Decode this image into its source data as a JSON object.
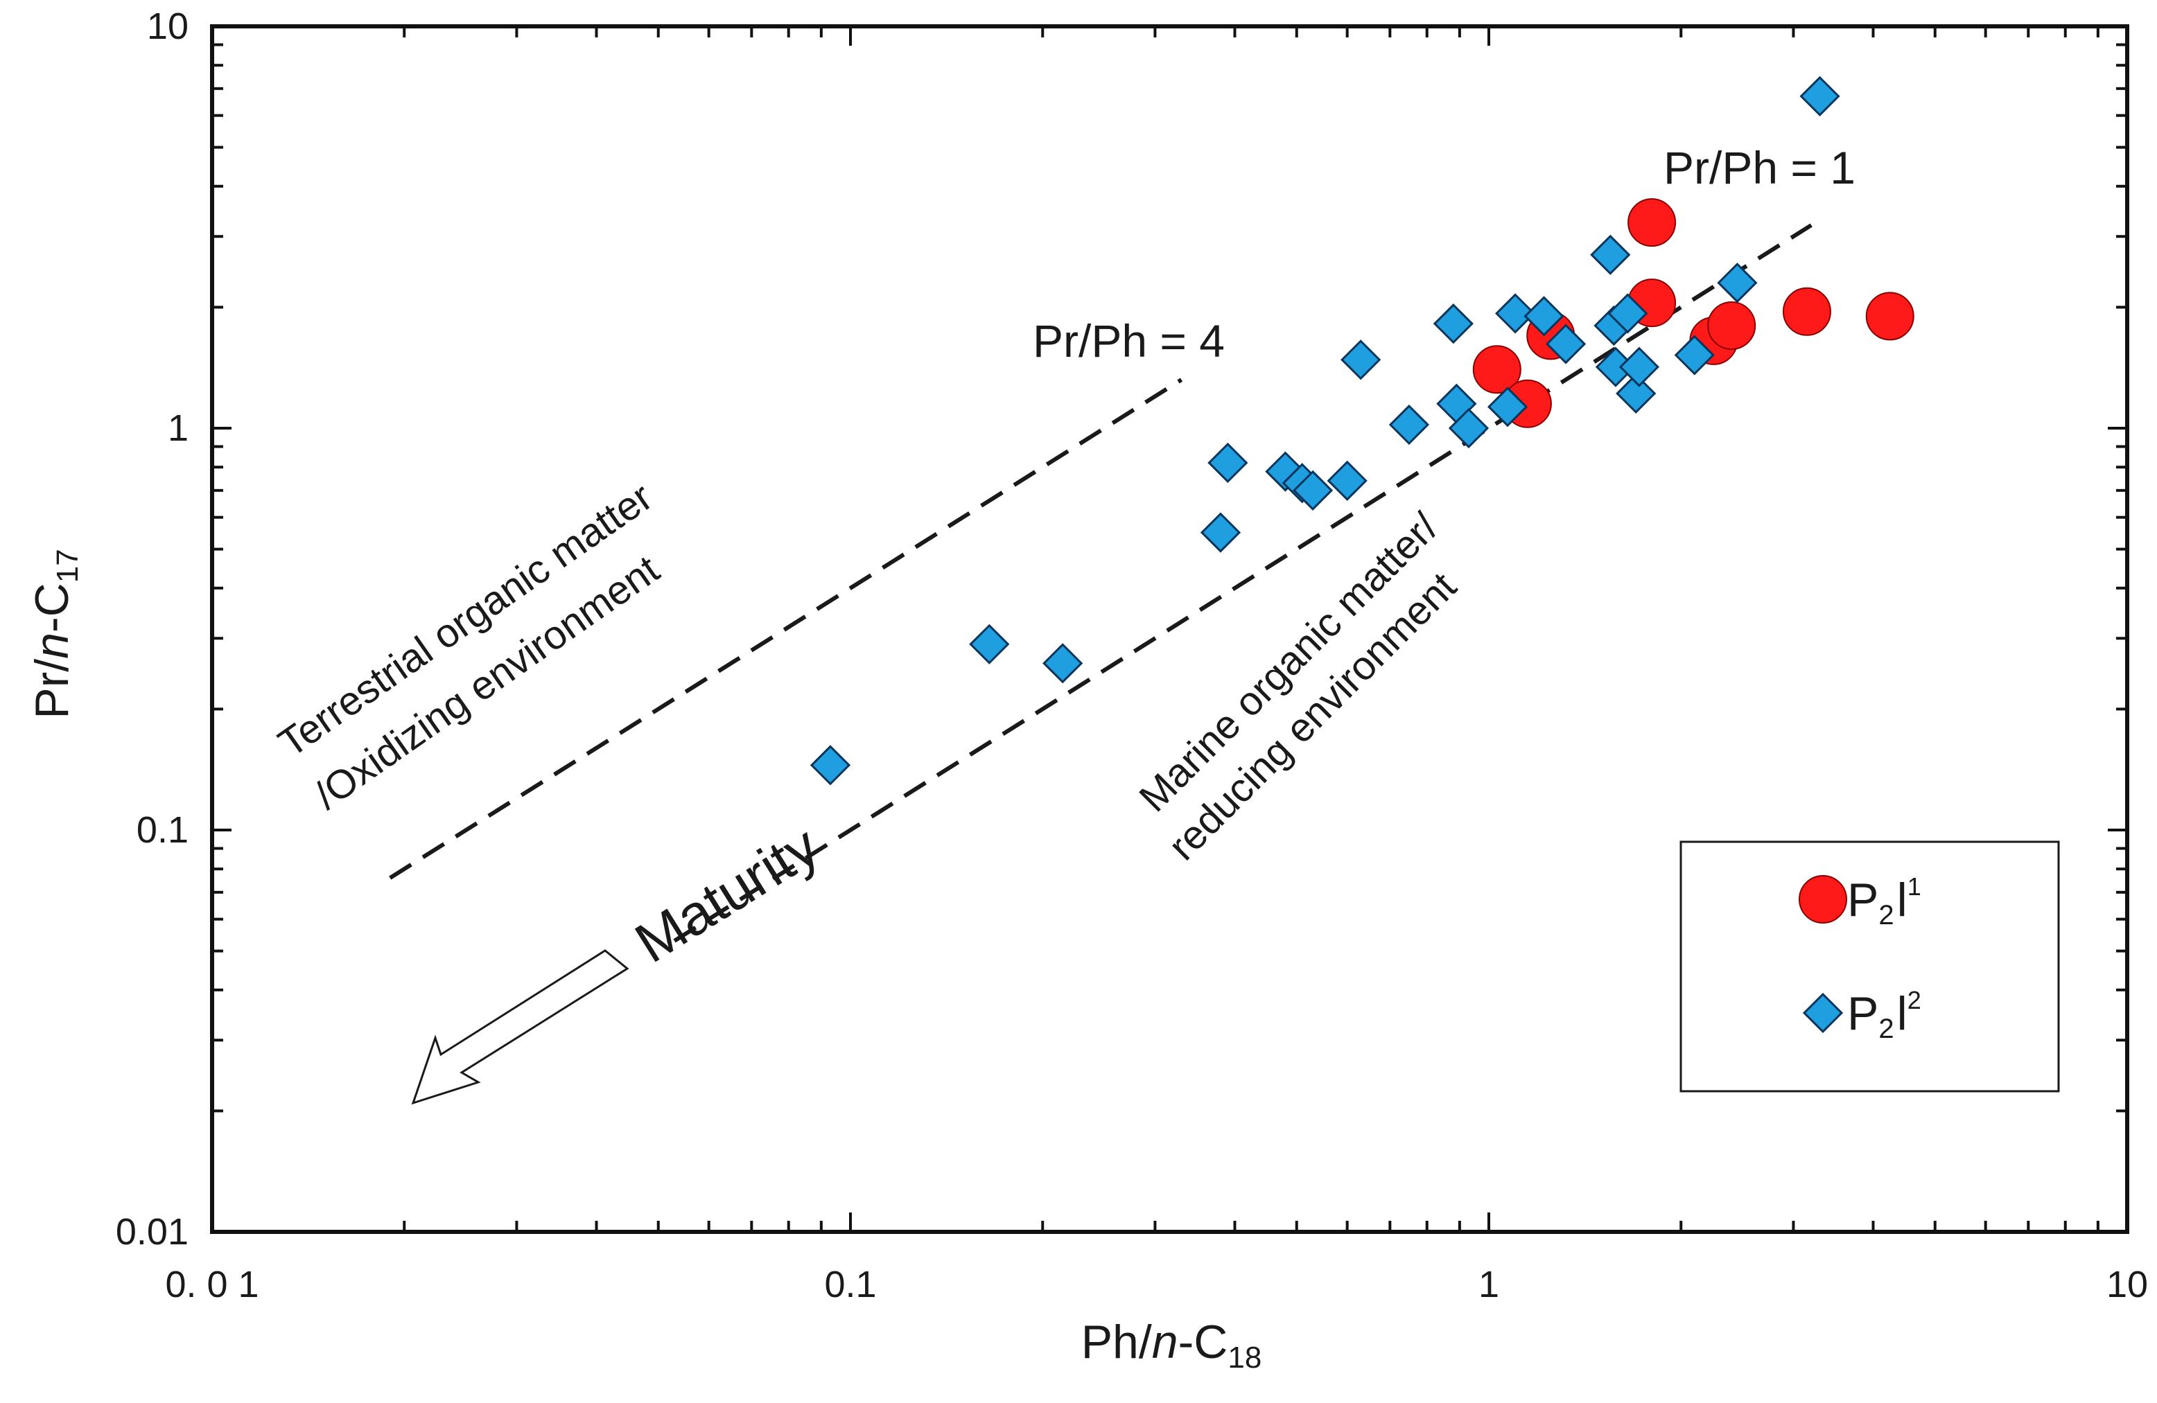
{
  "chart_data": {
    "type": "scatter",
    "xscale": "log",
    "yscale": "log",
    "xlim": [
      0.01,
      10
    ],
    "ylim": [
      0.01,
      10
    ],
    "xlabel": {
      "pre": "Ph/",
      "italic": "n",
      "post": "-C",
      "sub": "18"
    },
    "ylabel": {
      "pre": "Pr/",
      "italic": "n",
      "post": "-C",
      "sub": "17"
    },
    "xticks": [
      {
        "value": 0.01,
        "label": "0. 0 1"
      },
      {
        "value": 0.1,
        "label": "0.1"
      },
      {
        "value": 1,
        "label": "1"
      },
      {
        "value": 10,
        "label": "10"
      }
    ],
    "yticks": [
      {
        "value": 0.01,
        "label": "0.01"
      },
      {
        "value": 0.1,
        "label": "0.1"
      },
      {
        "value": 1,
        "label": "1"
      },
      {
        "value": 10,
        "label": "10"
      }
    ],
    "series": [
      {
        "name": "P2l1",
        "label": {
          "base": "P",
          "sub": "2",
          "letter": "l",
          "sup": "1"
        },
        "marker": "circle",
        "color": "#ff1a1a",
        "stroke": "#8a0000",
        "points": [
          {
            "x": 1.03,
            "y": 1.4
          },
          {
            "x": 1.15,
            "y": 1.15
          },
          {
            "x": 1.25,
            "y": 1.7
          },
          {
            "x": 1.8,
            "y": 3.25
          },
          {
            "x": 1.8,
            "y": 2.05
          },
          {
            "x": 2.25,
            "y": 1.65
          },
          {
            "x": 2.4,
            "y": 1.8
          },
          {
            "x": 3.15,
            "y": 1.95
          },
          {
            "x": 4.25,
            "y": 1.9
          }
        ]
      },
      {
        "name": "P2l2",
        "label": {
          "base": "P",
          "sub": "2",
          "letter": "l",
          "sup": "2"
        },
        "marker": "diamond",
        "color": "#1f9fe0",
        "stroke": "#07355c",
        "points": [
          {
            "x": 0.093,
            "y": 0.145
          },
          {
            "x": 0.165,
            "y": 0.29
          },
          {
            "x": 0.215,
            "y": 0.26
          },
          {
            "x": 0.38,
            "y": 0.55
          },
          {
            "x": 0.39,
            "y": 0.82
          },
          {
            "x": 0.48,
            "y": 0.78
          },
          {
            "x": 0.51,
            "y": 0.73
          },
          {
            "x": 0.53,
            "y": 0.7
          },
          {
            "x": 0.6,
            "y": 0.74
          },
          {
            "x": 0.63,
            "y": 1.48
          },
          {
            "x": 0.75,
            "y": 1.02
          },
          {
            "x": 0.88,
            "y": 1.82
          },
          {
            "x": 0.89,
            "y": 1.15
          },
          {
            "x": 0.93,
            "y": 1.0
          },
          {
            "x": 1.07,
            "y": 1.13
          },
          {
            "x": 1.1,
            "y": 1.93
          },
          {
            "x": 1.22,
            "y": 1.9
          },
          {
            "x": 1.32,
            "y": 1.62
          },
          {
            "x": 1.55,
            "y": 2.7
          },
          {
            "x": 1.57,
            "y": 1.8
          },
          {
            "x": 1.58,
            "y": 1.42
          },
          {
            "x": 1.65,
            "y": 1.93
          },
          {
            "x": 1.7,
            "y": 1.22
          },
          {
            "x": 1.72,
            "y": 1.42
          },
          {
            "x": 2.1,
            "y": 1.52
          },
          {
            "x": 2.45,
            "y": 2.3
          },
          {
            "x": 3.3,
            "y": 6.7
          }
        ]
      }
    ],
    "reference_lines": [
      {
        "label": "Pr/Ph = 4",
        "ratio": 4,
        "x_range": [
          0.019,
          0.33
        ]
      },
      {
        "label": "Pr/Ph = 1",
        "ratio": 1,
        "x_range": [
          0.053,
          3.2
        ]
      }
    ],
    "annotations": {
      "terrestrial_line1": "Terrestrial  organic matter",
      "terrestrial_line2": "/Oxidizing environment",
      "marine_line1": "Marine  organic matter/",
      "marine_line2": "reducing environment",
      "maturity": "Maturity"
    },
    "legend": {
      "position": "bottom-right"
    }
  }
}
